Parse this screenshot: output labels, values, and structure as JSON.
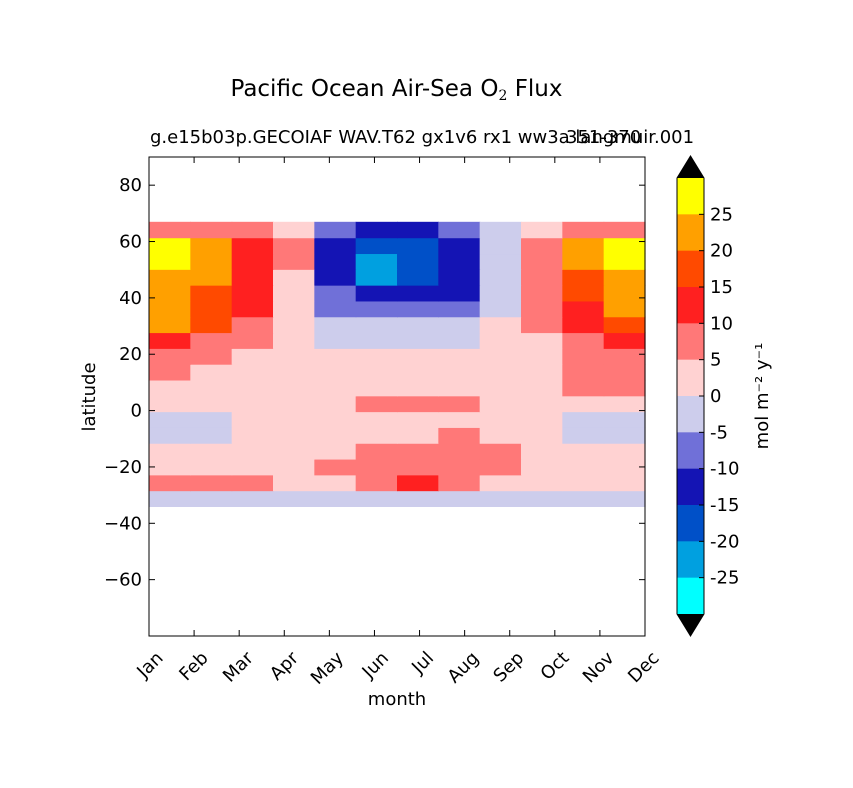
{
  "chart_data": {
    "type": "heatmap",
    "title": "Pacific Ocean Air-Sea O",
    "title_subscript": "2",
    "title_suffix": "Flux",
    "subtitle": "g.e15b03p.GECOIAF WAV.T62 gx1v6 rx1 ww3a langmuir.001",
    "subtitle_overlay": "351-370",
    "xlabel": "month",
    "ylabel": "latitude",
    "x_ticks": [
      "Jan",
      "Feb",
      "Mar",
      "Apr",
      "May",
      "Jun",
      "Jul",
      "Aug",
      "Sep",
      "Oct",
      "Nov",
      "Dec"
    ],
    "y_ticks": [
      80,
      60,
      40,
      20,
      0,
      -20,
      -40,
      -60
    ],
    "y_tick_labels": [
      "80",
      "60",
      "40",
      "20",
      "0",
      "−20",
      "−40",
      "−60"
    ],
    "ylim": [
      -80,
      90
    ],
    "data_lat_range": [
      -34,
      67
    ],
    "colorbar": {
      "label": "mol m⁻² y⁻¹",
      "levels": [
        -30,
        -25,
        -20,
        -15,
        -10,
        -5,
        0,
        5,
        10,
        15,
        20,
        25,
        30
      ],
      "tick_labels": [
        "25",
        "20",
        "15",
        "10",
        "5",
        "0",
        "-5",
        "-10",
        "-15",
        "-20",
        "-25"
      ],
      "colors": [
        "#00ffff",
        "#00a0e0",
        "#0050c8",
        "#1414b4",
        "#7070d8",
        "#cdcdec",
        "#ffd2d2",
        "#ff7878",
        "#ff2020",
        "#ff4a00",
        "#ffa000",
        "#ffff00"
      ],
      "extend_color": "#000000"
    },
    "values": [
      [
        -5,
        -5,
        -5,
        -5,
        -5,
        -5,
        -5,
        -5,
        -5,
        -5,
        -5,
        -5
      ],
      [
        5,
        5,
        5,
        0,
        0,
        5,
        10,
        5,
        0,
        0,
        0,
        0
      ],
      [
        0,
        0,
        0,
        0,
        5,
        5,
        5,
        5,
        5,
        0,
        0,
        0
      ],
      [
        0,
        0,
        0,
        0,
        0,
        5,
        5,
        5,
        5,
        0,
        0,
        0
      ],
      [
        -5,
        -5,
        0,
        0,
        0,
        0,
        0,
        5,
        0,
        0,
        -5,
        -5
      ],
      [
        -5,
        -5,
        0,
        0,
        0,
        0,
        0,
        0,
        0,
        0,
        -5,
        -5
      ],
      [
        0,
        0,
        0,
        0,
        0,
        5,
        5,
        5,
        0,
        0,
        0,
        0
      ],
      [
        0,
        0,
        0,
        0,
        0,
        0,
        0,
        0,
        0,
        0,
        5,
        5
      ],
      [
        5,
        0,
        0,
        0,
        0,
        0,
        0,
        0,
        0,
        0,
        5,
        5
      ],
      [
        5,
        5,
        0,
        0,
        0,
        0,
        0,
        0,
        0,
        0,
        5,
        5
      ],
      [
        10,
        5,
        5,
        0,
        -5,
        -5,
        -5,
        -5,
        0,
        0,
        5,
        10
      ],
      [
        20,
        15,
        5,
        0,
        -5,
        -5,
        -5,
        -5,
        0,
        5,
        10,
        15
      ],
      [
        20,
        15,
        10,
        0,
        -10,
        -10,
        -10,
        -10,
        -5,
        5,
        10,
        20
      ],
      [
        20,
        15,
        10,
        0,
        -10,
        -15,
        -15,
        -15,
        -5,
        5,
        15,
        20
      ],
      [
        20,
        20,
        10,
        0,
        -15,
        -25,
        -20,
        -15,
        -5,
        5,
        15,
        20
      ],
      [
        25,
        20,
        10,
        5,
        -15,
        -25,
        -20,
        -15,
        -5,
        5,
        20,
        25
      ],
      [
        25,
        20,
        10,
        5,
        -15,
        -20,
        -20,
        -15,
        -5,
        5,
        20,
        25
      ],
      [
        5,
        5,
        5,
        0,
        -10,
        -15,
        -15,
        -10,
        -5,
        0,
        5,
        5
      ]
    ]
  }
}
